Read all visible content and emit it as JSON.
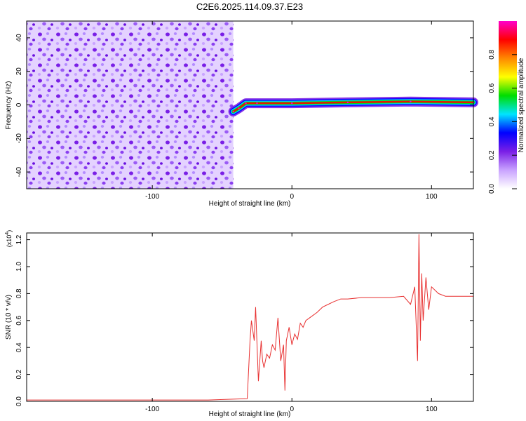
{
  "title": "C2E6.2025.114.09.37.E23",
  "chart_data": [
    {
      "type": "heatmap",
      "xlabel": "Height of straight line (km)",
      "ylabel": "Frequency (Hz)",
      "xlim": [
        -190,
        130
      ],
      "ylim": [
        -50,
        50
      ],
      "x_ticks": [
        -100,
        0,
        100
      ],
      "x_tick_labels": [
        "-100",
        "0",
        "100"
      ],
      "y_ticks": [
        -40,
        -20,
        0,
        20,
        40
      ],
      "y_tick_labels": [
        "-40",
        "-20",
        "0",
        "20",
        "40"
      ],
      "noise_region_x": [
        -190,
        -42
      ],
      "signal_track": [
        {
          "x": -42,
          "freq": -4
        },
        {
          "x": -38,
          "freq": -2
        },
        {
          "x": -33,
          "freq": 1
        },
        {
          "x": -25,
          "freq": 1
        },
        {
          "x": 0,
          "freq": 1
        },
        {
          "x": 40,
          "freq": 1.5
        },
        {
          "x": 85,
          "freq": 2
        },
        {
          "x": 130,
          "freq": 1.5
        }
      ],
      "colorbar": {
        "label": "Normalized spectral amplitude",
        "range": [
          0,
          1
        ],
        "ticks": [
          0.0,
          0.2,
          0.4,
          0.6,
          0.8
        ],
        "tick_labels": [
          "0.0",
          "0.2",
          "0.4",
          "0.6",
          "0.8"
        ],
        "colors": [
          "#ffffff",
          "#c9a3ff",
          "#7a1fe6",
          "#0000ff",
          "#00e5ff",
          "#00dd00",
          "#ffff00",
          "#ff8800",
          "#ff0000",
          "#ff00cc"
        ]
      }
    },
    {
      "type": "line",
      "xlabel": "Height of straight line (km)",
      "ylabel": "SNR (10 * v/v)",
      "scale_label": "(x10",
      "scale_exponent": "4",
      "scale_suffix": ")",
      "xlim": [
        -190,
        130
      ],
      "ylim": [
        0,
        1.25
      ],
      "x_ticks": [
        -100,
        0,
        100
      ],
      "x_tick_labels": [
        "-100",
        "0",
        "100"
      ],
      "y_ticks": [
        0.0,
        0.2,
        0.4,
        0.6,
        0.8,
        1.0,
        1.2
      ],
      "y_tick_labels": [
        "0.0",
        "0.2",
        "0.4",
        "0.6",
        "0.8",
        "1.0",
        "1.2"
      ],
      "line_color": "#e83030",
      "series": [
        {
          "x": [
            -190,
            -150,
            -100,
            -60,
            -32,
            -30,
            -29,
            -27,
            -26,
            -24,
            -22,
            -21,
            -20,
            -18,
            -16,
            -14,
            -12,
            -10,
            -8,
            -6,
            -5,
            -4,
            -2,
            0,
            2,
            4,
            6,
            8,
            10,
            14,
            18,
            22,
            26,
            30,
            35,
            40,
            50,
            60,
            70,
            80,
            85,
            88,
            90,
            91,
            92,
            93,
            94,
            96,
            98,
            100,
            105,
            110,
            120,
            130
          ],
          "y": [
            0.01,
            0.01,
            0.01,
            0.01,
            0.02,
            0.45,
            0.6,
            0.45,
            0.7,
            0.15,
            0.45,
            0.3,
            0.25,
            0.35,
            0.32,
            0.42,
            0.38,
            0.62,
            0.3,
            0.42,
            0.08,
            0.45,
            0.55,
            0.42,
            0.5,
            0.46,
            0.58,
            0.55,
            0.6,
            0.63,
            0.66,
            0.7,
            0.72,
            0.74,
            0.76,
            0.76,
            0.77,
            0.77,
            0.77,
            0.78,
            0.72,
            0.85,
            0.3,
            1.24,
            0.45,
            0.95,
            0.6,
            0.92,
            0.68,
            0.85,
            0.8,
            0.78,
            0.78,
            0.78
          ]
        }
      ]
    }
  ]
}
